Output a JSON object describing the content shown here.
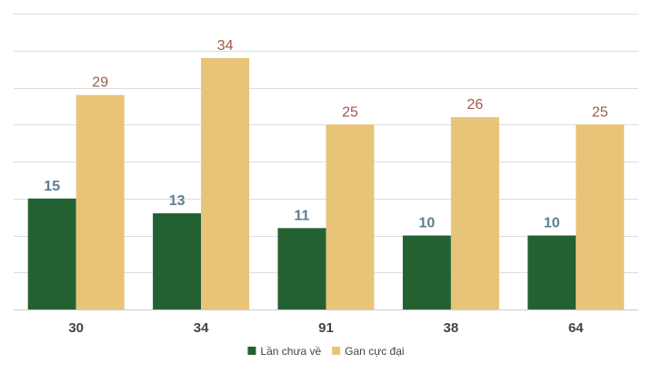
{
  "chart_data": {
    "type": "bar",
    "categories": [
      "30",
      "34",
      "91",
      "38",
      "64"
    ],
    "series": [
      {
        "name": "Lần chưa về",
        "values": [
          15,
          13,
          11,
          10,
          10
        ],
        "color": "#246132",
        "label_color": "#5b7f8f"
      },
      {
        "name": "Gan cực đại",
        "values": [
          29,
          34,
          25,
          26,
          25
        ],
        "color": "#e8c478",
        "label_color": "#9c5a48"
      }
    ],
    "ylim": [
      0,
      40
    ],
    "grid": true,
    "legend": "bottom-center",
    "grid_color": "#dddddd",
    "axis_color": "#cccccc"
  }
}
